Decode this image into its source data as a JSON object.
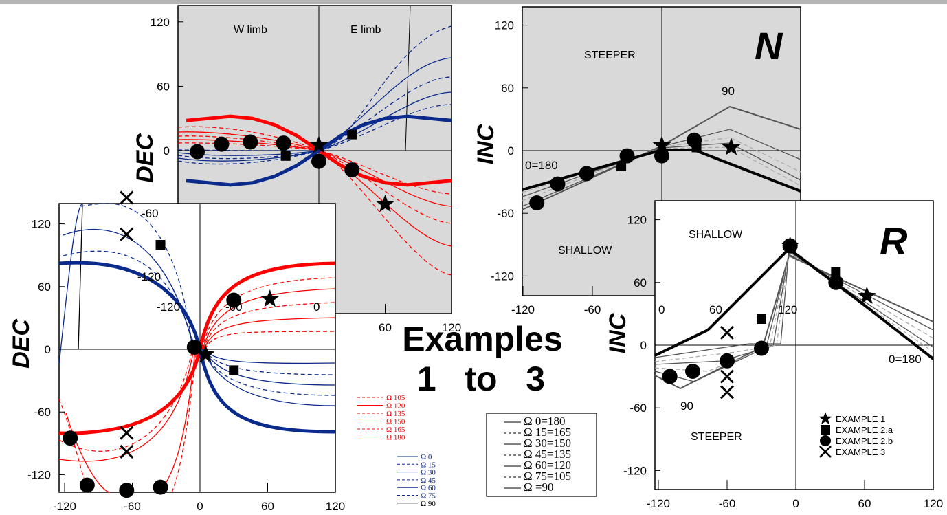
{
  "title_lines": [
    "Examples",
    "1   to   3"
  ],
  "chart_data": [
    {
      "type": "line",
      "id": "dec-top",
      "ylabel": "DEC",
      "yticks": [
        "120",
        "60",
        "0",
        "-60"
      ],
      "xticks": [
        "-120",
        "-60",
        "0",
        "60",
        "120"
      ],
      "xlim": [
        -120,
        120
      ],
      "ylim": [
        -110,
        135
      ],
      "regions": [
        "W   limb",
        "E   limb"
      ],
      "series": [
        {
          "group": "red",
          "bold": true,
          "x": [
            -120,
            -100,
            -80,
            -60,
            -40,
            -20,
            0,
            20,
            40,
            60,
            80,
            100,
            120
          ],
          "y": [
            28,
            30,
            32,
            30,
            24,
            14,
            0,
            -14,
            -24,
            -30,
            -32,
            -30,
            -28
          ]
        },
        {
          "group": "blue",
          "bold": true,
          "x": [
            -120,
            -100,
            -80,
            -60,
            -40,
            -20,
            0,
            20,
            40,
            60,
            80,
            100,
            120
          ],
          "y": [
            -28,
            -30,
            -32,
            -30,
            -24,
            -14,
            0,
            14,
            24,
            30,
            32,
            30,
            28
          ]
        }
      ],
      "markers": {
        "star": [
          [
            0,
            5
          ],
          [
            60,
            -50
          ]
        ],
        "square": [
          [
            -30,
            -5
          ],
          [
            30,
            15
          ]
        ],
        "circle": [
          [
            -110,
            -1
          ],
          [
            -88,
            6
          ],
          [
            -62,
            8
          ],
          [
            -32,
            7
          ],
          [
            0,
            -10
          ],
          [
            30,
            -18
          ]
        ]
      }
    },
    {
      "type": "line",
      "id": "inc-top",
      "ylabel": "INC",
      "panel_letter": "N",
      "yticks": [
        "120",
        "60",
        "0",
        "-60",
        "-120"
      ],
      "xticks": [
        "-120",
        "-60",
        "0",
        "60",
        "120"
      ],
      "xlim": [
        -120,
        120
      ],
      "ylim": [
        -130,
        135
      ],
      "labels": [
        "STEEPER",
        "SHALLOW",
        "90",
        "0=180"
      ],
      "markers": {
        "star": [
          [
            0,
            5
          ],
          [
            60,
            3
          ]
        ],
        "square": [
          [
            -35,
            -15
          ],
          [
            30,
            3
          ]
        ],
        "circle": [
          [
            -108,
            -50
          ],
          [
            -90,
            -32
          ],
          [
            -65,
            -22
          ],
          [
            -30,
            -5
          ],
          [
            0,
            -5
          ],
          [
            28,
            10
          ]
        ]
      }
    },
    {
      "type": "line",
      "id": "dec-bottom",
      "ylabel": "DEC",
      "yticks": [
        "120",
        "60",
        "0",
        "-60",
        "-120"
      ],
      "xticks": [
        "-120",
        "-60",
        "0",
        "60",
        "120"
      ],
      "xlim": [
        -120,
        120
      ],
      "ylim": [
        -140,
        150
      ],
      "labels": [
        "-60",
        "-120",
        "-120",
        "-60",
        "0"
      ],
      "markers": {
        "star": [
          [
            62,
            48
          ],
          [
            5,
            -5
          ]
        ],
        "square": [
          [
            -35,
            100
          ],
          [
            30,
            -20
          ]
        ],
        "circle": [
          [
            -115,
            -85
          ],
          [
            -100,
            -130
          ],
          [
            -65,
            -135
          ],
          [
            -35,
            -132
          ],
          [
            -5,
            2
          ],
          [
            30,
            47
          ]
        ],
        "cross": [
          [
            -65,
            145
          ],
          [
            -65,
            110
          ],
          [
            -65,
            -80
          ],
          [
            -65,
            -98
          ]
        ]
      }
    },
    {
      "type": "line",
      "id": "inc-bottom",
      "ylabel": "INC",
      "panel_letter": "R",
      "yticks": [
        "120",
        "60",
        "0",
        "-60",
        "-120"
      ],
      "xticks": [
        "-120",
        "-60",
        "0",
        "60",
        "120"
      ],
      "xlim": [
        -120,
        120
      ],
      "ylim": [
        -140,
        150
      ],
      "labels": [
        "SHALLOW",
        "STEEPER",
        "0",
        "60",
        "120",
        "90",
        "0=180"
      ],
      "markers": {
        "star": [
          [
            -5,
            95
          ],
          [
            62,
            47
          ]
        ],
        "square": [
          [
            35,
            70
          ],
          [
            -30,
            25
          ]
        ],
        "circle": [
          [
            -110,
            -30
          ],
          [
            -90,
            -25
          ],
          [
            -60,
            -15
          ],
          [
            -30,
            -3
          ],
          [
            -5,
            95
          ],
          [
            35,
            60
          ]
        ],
        "cross": [
          [
            -60,
            12
          ],
          [
            -60,
            -30
          ],
          [
            -60,
            -45
          ]
        ]
      }
    }
  ],
  "legend_omega_red": [
    "Ω 105",
    "Ω 120",
    "Ω 135",
    "Ω 150",
    "Ω 165",
    "Ω 180"
  ],
  "legend_omega_blue": [
    "Ω  0",
    "Ω 15",
    "Ω 30",
    "Ω 45",
    "Ω 60",
    "Ω 75",
    "Ω 90"
  ],
  "legend_omega_pairs": [
    "Ω  0=180",
    "Ω 15=165",
    "Ω 30=150",
    "Ω 45=135",
    "Ω 60=120",
    "Ω 75=105",
    "Ω =90"
  ],
  "legend_examples": [
    "EXAMPLE   1",
    "EXAMPLE   2.a",
    "EXAMPLE   2.b",
    "EXAMPLE   3"
  ],
  "colors": {
    "red": "#ff0000",
    "blue": "#0a2a8c",
    "gray_panel": "#d9d9d9",
    "gray_line": "#555555",
    "gray_dash": "#aaaaaa"
  }
}
